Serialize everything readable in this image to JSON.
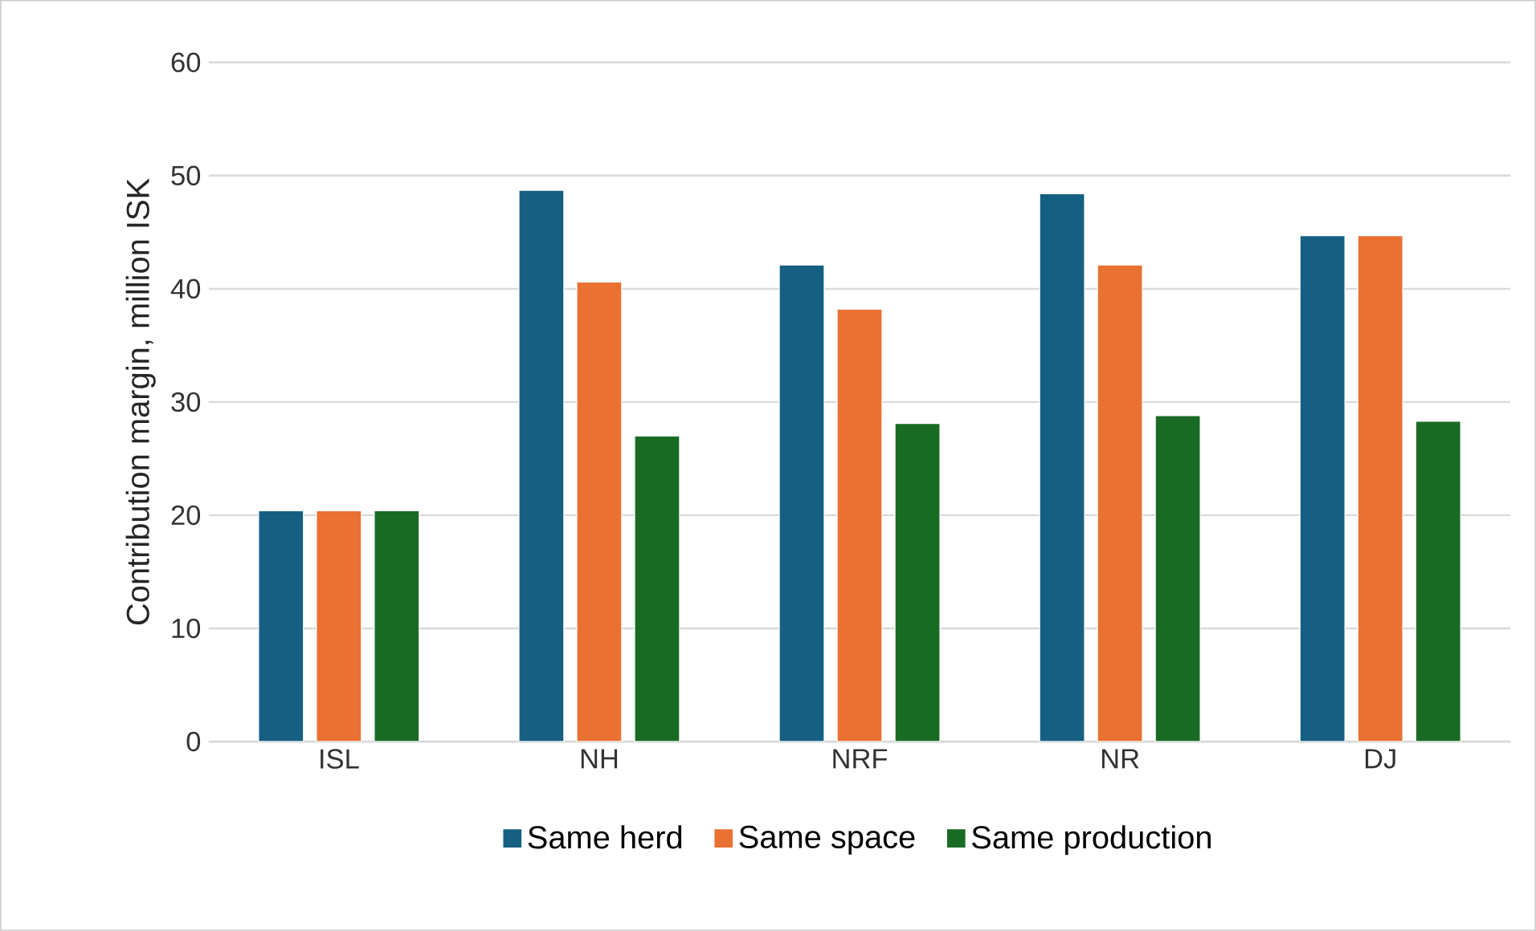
{
  "chart_data": {
    "type": "bar",
    "ylabel": "Contribution margin, million ISK",
    "categories": [
      "ISL",
      "NH",
      "NRF",
      "NR",
      "DJ"
    ],
    "series": [
      {
        "name": "Same herd",
        "color": "#156082",
        "values": [
          20.4,
          48.7,
          42.1,
          48.4,
          44.7
        ]
      },
      {
        "name": "Same space",
        "color": "#e97132",
        "values": [
          20.4,
          40.6,
          38.2,
          42.1,
          44.7
        ]
      },
      {
        "name": "Same production",
        "color": "#196b24",
        "values": [
          20.4,
          27.0,
          28.1,
          28.8,
          28.3
        ]
      }
    ],
    "ylim": [
      0,
      60
    ],
    "yticks": [
      0,
      10,
      20,
      30,
      40,
      50,
      60
    ],
    "grid": "y",
    "legend": "bottom"
  }
}
